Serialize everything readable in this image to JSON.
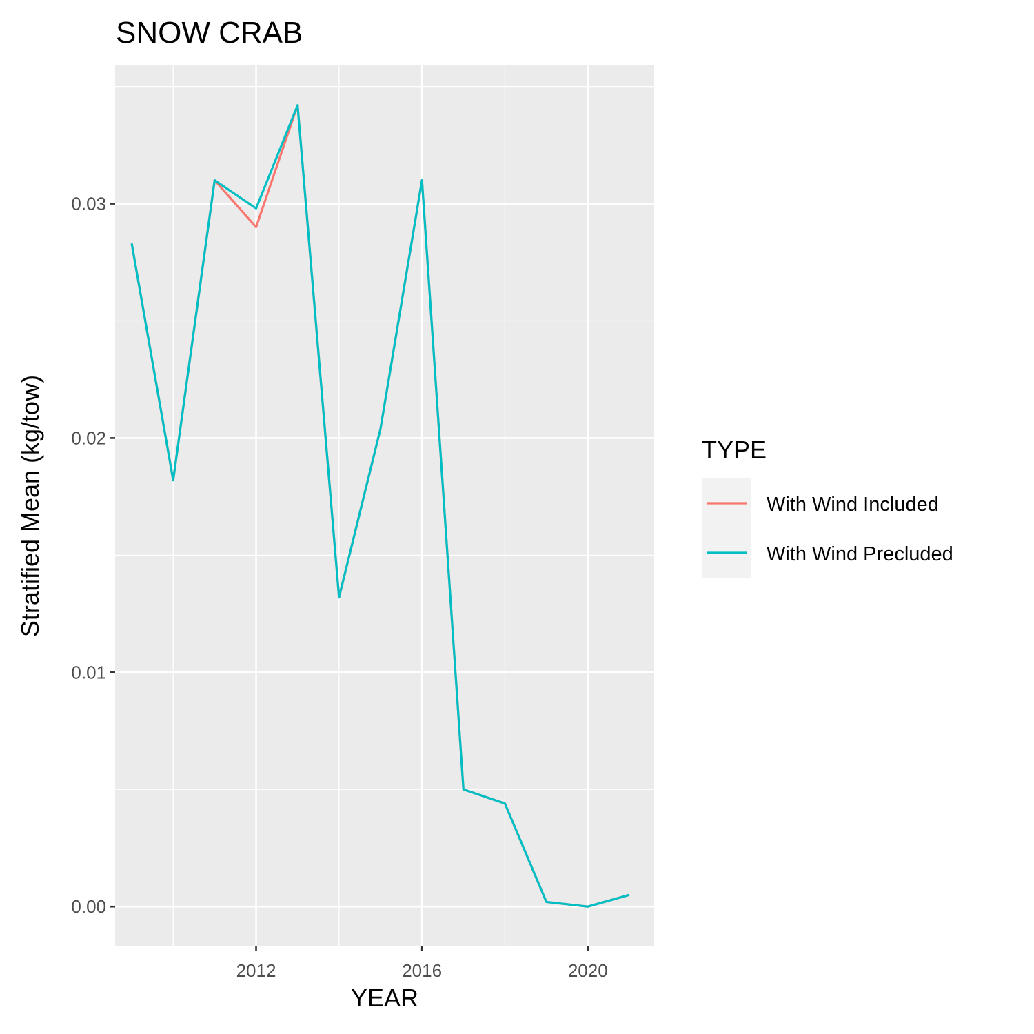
{
  "chart_data": {
    "type": "line",
    "title": "SNOW CRAB",
    "xlabel": "YEAR",
    "ylabel": "Stratified Mean (kg/tow)",
    "x": [
      2009,
      2010,
      2011,
      2012,
      2013,
      2014,
      2015,
      2016,
      2017,
      2018,
      2019,
      2020,
      2021
    ],
    "xlim": [
      2008.6,
      2021.6
    ],
    "ylim": [
      -0.0017,
      0.0359
    ],
    "x_ticks": [
      2012,
      2016,
      2020
    ],
    "x_tick_labels": [
      "2012",
      "2016",
      "2020"
    ],
    "y_ticks": [
      0.0,
      0.01,
      0.02,
      0.03
    ],
    "y_tick_labels": [
      "0.00",
      "0.01",
      "0.02",
      "0.03"
    ],
    "grid": true,
    "legend": {
      "title": "TYPE",
      "position": "right"
    },
    "series": [
      {
        "name": "With Wind Included",
        "color": "#F8766D",
        "values": [
          0.0283,
          0.0182,
          0.031,
          0.029,
          0.0342,
          0.0132,
          0.0204,
          0.031,
          0.005,
          0.0044,
          0.0002,
          0.0,
          0.0005
        ]
      },
      {
        "name": "With Wind Precluded",
        "color": "#00BFC4",
        "values": [
          0.0283,
          0.0182,
          0.031,
          0.0298,
          0.0342,
          0.0132,
          0.0204,
          0.031,
          0.005,
          0.0044,
          0.0002,
          0.0,
          0.0005
        ]
      }
    ]
  }
}
